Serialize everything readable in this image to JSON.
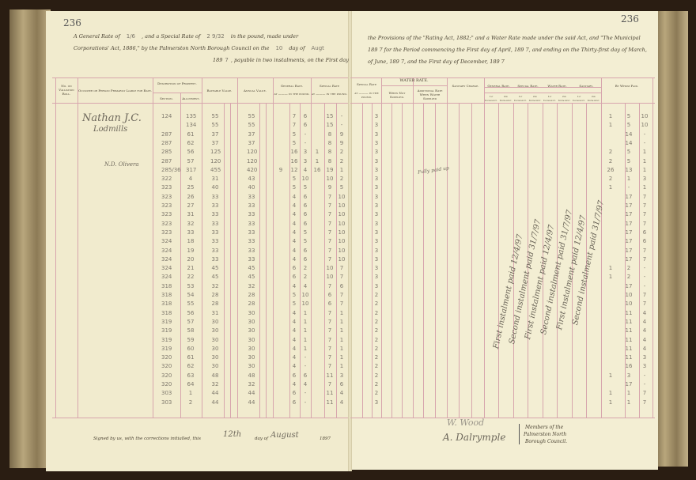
{
  "left_page": {
    "page_number": "236",
    "preamble": {
      "line1_a": "A General Rate of",
      "general_rate_value": "1/6",
      "line1_b": ", and a Special Rate of",
      "special_rate_value": "2 9/32",
      "line1_c": "in the pound, made under",
      "line2_a": "Corporations' Act, 1886,\" by the Palmerston North Borough Council on the",
      "day_value": "10",
      "line2_b": "day of",
      "month_value": "Augt",
      "line3_year_prefix": "189",
      "year_value": "7",
      "line3_b": ", payable in two instalments, on the First day"
    },
    "headers": {
      "roll": "No. on Valuation Roll.",
      "occupier": "Occupier or Person Primarily Liable for Rate.",
      "description": "Description of Property.",
      "section": "Section.",
      "allotment": "Allotment.",
      "rateable": "Rateable Value.",
      "annual": "Annual Value.",
      "general_rate": "General Rate.",
      "general_rate_sub": "at ——— in the pound.",
      "special_rate": "Special Rate",
      "special_rate_sub": "at ——— in the pound."
    },
    "handwritten": {
      "occupier_name": "Nathan J.C.",
      "occupier_note": "Lodmills",
      "margin_note": "N.D. Olivera"
    },
    "rows": [
      [
        "124",
        "135",
        "55",
        "55",
        "",
        "7",
        "6",
        "",
        "15",
        "-"
      ],
      [
        "",
        "134",
        "55",
        "55",
        "",
        "7",
        "6",
        "",
        "15",
        "-"
      ],
      [
        "287",
        "61",
        "37",
        "37",
        "",
        "5",
        "-",
        "",
        "8",
        "9"
      ],
      [
        "287",
        "62",
        "37",
        "37",
        "",
        "5",
        "-",
        "",
        "8",
        "9"
      ],
      [
        "285",
        "56",
        "125",
        "120",
        "",
        "16",
        "3",
        "1",
        "8",
        "2"
      ],
      [
        "287",
        "57",
        "120",
        "120",
        "",
        "16",
        "3",
        "1",
        "8",
        "2"
      ],
      [
        "285/36",
        "317",
        "455",
        "420",
        "9",
        "12",
        "4",
        "16",
        "19",
        "1"
      ],
      [
        "322",
        "4",
        "31",
        "43",
        "",
        "5",
        "10",
        "",
        "10",
        "2"
      ],
      [
        "323",
        "25",
        "40",
        "40",
        "",
        "5",
        "5",
        "",
        "9",
        "5"
      ],
      [
        "323",
        "26",
        "33",
        "33",
        "",
        "4",
        "6",
        "",
        "7",
        "10"
      ],
      [
        "323",
        "27",
        "33",
        "33",
        "",
        "4",
        "6",
        "",
        "7",
        "10"
      ],
      [
        "323",
        "31",
        "33",
        "33",
        "",
        "4",
        "6",
        "",
        "7",
        "10"
      ],
      [
        "323",
        "32",
        "33",
        "33",
        "",
        "4",
        "6",
        "",
        "7",
        "10"
      ],
      [
        "323",
        "33",
        "33",
        "33",
        "",
        "4",
        "5",
        "",
        "7",
        "10"
      ],
      [
        "324",
        "18",
        "33",
        "33",
        "",
        "4",
        "5",
        "",
        "7",
        "10"
      ],
      [
        "324",
        "19",
        "33",
        "33",
        "",
        "4",
        "6",
        "",
        "7",
        "10"
      ],
      [
        "324",
        "20",
        "33",
        "33",
        "",
        "4",
        "6",
        "",
        "7",
        "10"
      ],
      [
        "324",
        "21",
        "45",
        "45",
        "",
        "6",
        "2",
        "",
        "10",
        "7"
      ],
      [
        "324",
        "22",
        "45",
        "45",
        "",
        "6",
        "2",
        "",
        "10",
        "7"
      ],
      [
        "318",
        "53",
        "32",
        "32",
        "",
        "4",
        "4",
        "",
        "7",
        "6"
      ],
      [
        "318",
        "54",
        "28",
        "28",
        "",
        "5",
        "10",
        "",
        "6",
        "7"
      ],
      [
        "318",
        "55",
        "28",
        "28",
        "",
        "5",
        "10",
        "",
        "6",
        "7"
      ],
      [
        "318",
        "56",
        "31",
        "30",
        "",
        "4",
        "1",
        "",
        "7",
        "1"
      ],
      [
        "319",
        "57",
        "30",
        "30",
        "",
        "4",
        "1",
        "",
        "7",
        "1"
      ],
      [
        "319",
        "58",
        "30",
        "30",
        "",
        "4",
        "1",
        "",
        "7",
        "1"
      ],
      [
        "319",
        "59",
        "30",
        "30",
        "",
        "4",
        "1",
        "",
        "7",
        "1"
      ],
      [
        "319",
        "60",
        "30",
        "30",
        "",
        "4",
        "1",
        "",
        "7",
        "1"
      ],
      [
        "320",
        "61",
        "30",
        "30",
        "",
        "4",
        "-",
        "",
        "7",
        "1"
      ],
      [
        "320",
        "62",
        "30",
        "30",
        "",
        "4",
        "-",
        "",
        "7",
        "1"
      ],
      [
        "320",
        "63",
        "48",
        "48",
        "",
        "6",
        "6",
        "",
        "11",
        "3"
      ],
      [
        "320",
        "64",
        "32",
        "32",
        "",
        "4",
        "4",
        "",
        "7",
        "6"
      ],
      [
        "303",
        "1",
        "44",
        "44",
        "",
        "6",
        "-",
        "",
        "11",
        "4"
      ],
      [
        "303",
        "2",
        "44",
        "44",
        "",
        "6",
        "-",
        "",
        "11",
        "4"
      ]
    ],
    "footer": {
      "signed_text": "Signed by us, with the corrections initialled, this",
      "day_value": "12th",
      "day_of": "day of",
      "month_value": "August",
      "year": "1897"
    }
  },
  "right_page": {
    "page_number": "236",
    "preamble": {
      "line1": "the Provisions of the \"Rating Act, 1882;\" and a Water Rate made under the said Act, and \"The Municipal",
      "line2": "189 7 for the Period commencing the First day of April, 189 7, and ending on the Thirty-first day of March,",
      "line3": "of June, 189 7, and the First day of December, 189 7"
    },
    "headers": {
      "special_rate": "Special Rate",
      "special_rate_sub": "at ——— in the pound.",
      "water_rate": "WATER RATE.",
      "not_supplied": "When Not Supplied.",
      "additional": "Additional Rate When Water Supplied",
      "sanitary_charge": "Sanitary Charge.",
      "general_rate": "General Rate.",
      "special_rate2": "Special Rate.",
      "water_rate2": "Water Rate.",
      "sanitary": "Sanitary.",
      "first_instalment": "1st Instalment.",
      "second_instalment": "2nd Instalment.",
      "by_whom_paid": "By Whom Paid."
    },
    "water_column": [
      "3",
      "3",
      "3",
      "3",
      "3",
      "3",
      "3",
      "3",
      "3",
      "3",
      "3",
      "3",
      "3",
      "3",
      "3",
      "3",
      "3",
      "3",
      "3",
      "3",
      "2",
      "2",
      "2",
      "2",
      "2",
      "2",
      "2",
      "2",
      "2",
      "2",
      "2",
      "2",
      "3"
    ],
    "handwritten_notes": [
      "First instalment paid 12/4/97",
      "Second instalment paid 31/7/97",
      "First instalment paid 12/4/97",
      "Second instalment paid 31/7/97",
      "First instalment paid 12/4/97",
      "Second instalment paid 31/7/97"
    ],
    "side_note": "Fully paid up",
    "by_whom_paid": [
      [
        "1",
        "5",
        "10"
      ],
      [
        "1",
        "5",
        "10"
      ],
      [
        "",
        "14",
        "-"
      ],
      [
        "",
        "14",
        "-"
      ],
      [
        "2",
        "5",
        "1"
      ],
      [
        "2",
        "5",
        "1"
      ],
      [
        "26",
        "13",
        "1"
      ],
      [
        "2",
        "1",
        "3"
      ],
      [
        "1",
        "-",
        "1"
      ],
      [
        "",
        "17",
        "7"
      ],
      [
        "",
        "17",
        "7"
      ],
      [
        "",
        "17",
        "7"
      ],
      [
        "",
        "17",
        "7"
      ],
      [
        "",
        "17",
        "6"
      ],
      [
        "",
        "17",
        "6"
      ],
      [
        "",
        "17",
        "7"
      ],
      [
        "",
        "17",
        "7"
      ],
      [
        "1",
        "2",
        "-"
      ],
      [
        "1",
        "2",
        "-"
      ],
      [
        "",
        "17",
        "-"
      ],
      [
        "",
        "10",
        "7"
      ],
      [
        "",
        "10",
        "7"
      ],
      [
        "",
        "11",
        "4"
      ],
      [
        "",
        "11",
        "4"
      ],
      [
        "",
        "11",
        "4"
      ],
      [
        "",
        "11",
        "4"
      ],
      [
        "",
        "11",
        "4"
      ],
      [
        "",
        "11",
        "3"
      ],
      [
        "",
        "16",
        "3"
      ],
      [
        "1",
        "3",
        "-"
      ],
      [
        "",
        "17",
        "-"
      ],
      [
        "1",
        "1",
        "7"
      ],
      [
        "1",
        "1",
        "7"
      ]
    ],
    "footer": {
      "signature_1": "W. Wood",
      "signature_2": "A. Dalrymple",
      "members_line1": "Members of the",
      "members_line2": "Palmerston North",
      "members_line3": "Borough Council."
    }
  }
}
